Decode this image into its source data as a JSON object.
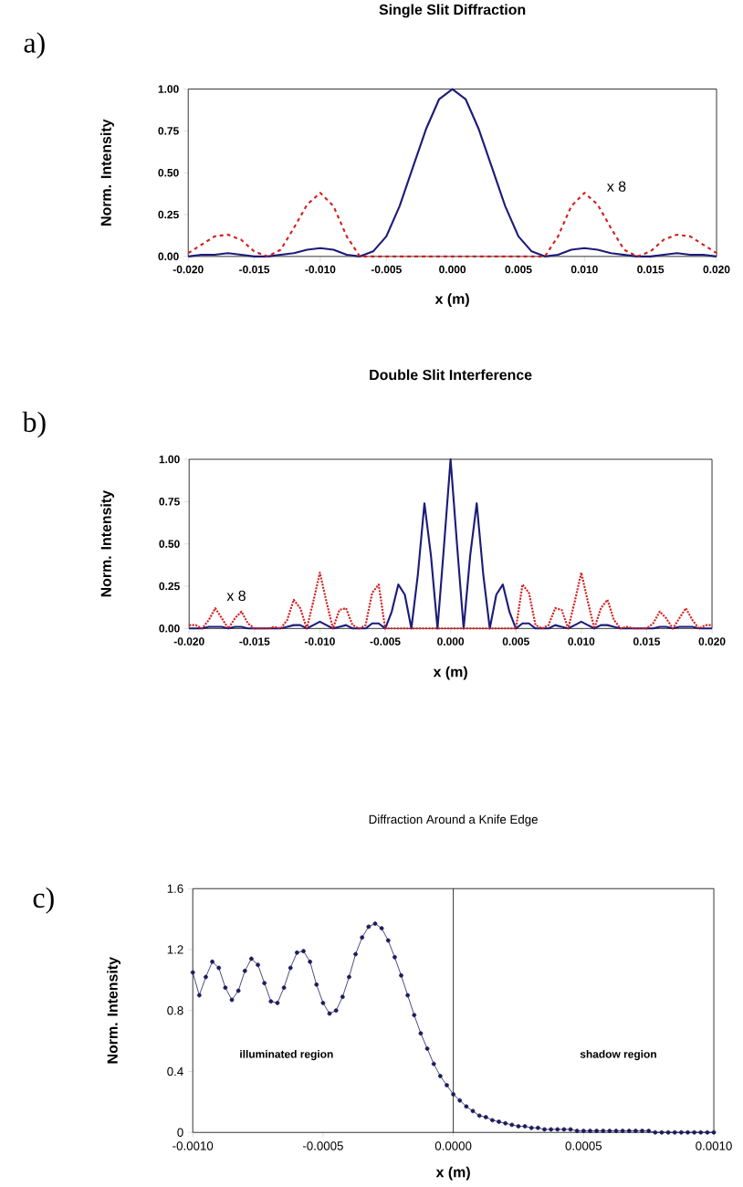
{
  "chart_data": [
    {
      "type": "line",
      "title": "Single Slit Diffraction",
      "xlabel": "x (m)",
      "ylabel": "Norm. Intensity",
      "annotations": [
        "a)",
        "x 8"
      ],
      "xlim": [
        -0.02,
        0.02
      ],
      "ylim": [
        0,
        1
      ],
      "xticks": [
        {
          "value": -0.02,
          "label": "-0.020"
        },
        {
          "value": -0.015,
          "label": "-0.015"
        },
        {
          "value": -0.01,
          "label": "-0.010"
        },
        {
          "value": -0.005,
          "label": "-0.005"
        },
        {
          "value": 0,
          "label": "0.000"
        },
        {
          "value": 0.005,
          "label": "0.005"
        },
        {
          "value": 0.01,
          "label": "0.010"
        },
        {
          "value": 0.015,
          "label": "0.015"
        },
        {
          "value": 0.02,
          "label": "0.020"
        }
      ],
      "yticks": [
        {
          "value": 0,
          "label": "0.00"
        },
        {
          "value": 0.25,
          "label": "0.25"
        },
        {
          "value": 0.5,
          "label": "0.50"
        },
        {
          "value": 0.75,
          "label": "0.75"
        },
        {
          "value": 1,
          "label": "1.00"
        }
      ],
      "x": [
        -0.02,
        -0.019,
        -0.018,
        -0.017,
        -0.016,
        -0.015,
        -0.014,
        -0.013,
        -0.012,
        -0.011,
        -0.01,
        -0.009,
        -0.008,
        -0.007,
        -0.006,
        -0.005,
        -0.004,
        -0.003,
        -0.002,
        -0.001,
        0,
        0.001,
        0.002,
        0.003,
        0.004,
        0.005,
        0.006,
        0.007,
        0.008,
        0.009,
        0.01,
        0.011,
        0.012,
        0.013,
        0.014,
        0.015,
        0.016,
        0.017,
        0.018,
        0.019,
        0.02
      ],
      "series": [
        {
          "color": "#1c1c78",
          "values": [
            0.0,
            0.01,
            0.01,
            0.02,
            0.01,
            0.0,
            0.0,
            0.01,
            0.02,
            0.04,
            0.05,
            0.04,
            0.01,
            0.0,
            0.03,
            0.12,
            0.3,
            0.53,
            0.76,
            0.94,
            1.0,
            0.94,
            0.76,
            0.53,
            0.3,
            0.12,
            0.03,
            0.0,
            0.01,
            0.04,
            0.05,
            0.04,
            0.02,
            0.01,
            0.0,
            0.0,
            0.01,
            0.02,
            0.01,
            0.01,
            0.0
          ]
        },
        {
          "color": "#d42020",
          "line_style": "dashed",
          "values": [
            0.02,
            0.07,
            0.12,
            0.13,
            0.1,
            0.03,
            0,
            0.04,
            0.17,
            0.31,
            0.38,
            0.3,
            0.12,
            0,
            0,
            0,
            0,
            0,
            0,
            0,
            0,
            0,
            0,
            0,
            0,
            0,
            0,
            0,
            0.12,
            0.3,
            0.38,
            0.31,
            0.17,
            0.04,
            0,
            0.03,
            0.1,
            0.13,
            0.12,
            0.07,
            0.02
          ]
        }
      ]
    },
    {
      "type": "line",
      "title": "Double Slit Interference",
      "xlabel": "x (m)",
      "ylabel": "Norm. Intensity",
      "annotations": [
        "b)",
        "x 8"
      ],
      "xlim": [
        -0.02,
        0.02
      ],
      "ylim": [
        0,
        1
      ],
      "xticks": [
        {
          "value": -0.02,
          "label": "-0.020"
        },
        {
          "value": -0.015,
          "label": "-0.015"
        },
        {
          "value": -0.01,
          "label": "-0.010"
        },
        {
          "value": -0.005,
          "label": "-0.005"
        },
        {
          "value": 0,
          "label": "0.000"
        },
        {
          "value": 0.005,
          "label": "0.005"
        },
        {
          "value": 0.01,
          "label": "0.010"
        },
        {
          "value": 0.015,
          "label": "0.015"
        },
        {
          "value": 0.02,
          "label": "0.020"
        }
      ],
      "yticks": [
        {
          "value": 0,
          "label": "0.00"
        },
        {
          "value": 0.25,
          "label": "0.25"
        },
        {
          "value": 0.5,
          "label": "0.50"
        },
        {
          "value": 0.75,
          "label": "0.75"
        },
        {
          "value": 1,
          "label": "1.00"
        }
      ],
      "x": [
        -0.02,
        -0.0195,
        -0.019,
        -0.0185,
        -0.018,
        -0.0175,
        -0.017,
        -0.0165,
        -0.016,
        -0.0155,
        -0.015,
        -0.0145,
        -0.014,
        -0.0135,
        -0.013,
        -0.0125,
        -0.012,
        -0.0115,
        -0.011,
        -0.0105,
        -0.01,
        -0.0095,
        -0.009,
        -0.0085,
        -0.008,
        -0.0075,
        -0.007,
        -0.0065,
        -0.006,
        -0.0055,
        -0.005,
        -0.0045,
        -0.004,
        -0.0035,
        -0.003,
        -0.0025,
        -0.002,
        -0.0015,
        -0.001,
        -0.0005,
        0,
        0.0005,
        0.001,
        0.0015,
        0.002,
        0.0025,
        0.003,
        0.0035,
        0.004,
        0.0045,
        0.005,
        0.0055,
        0.006,
        0.0065,
        0.007,
        0.0075,
        0.008,
        0.0085,
        0.009,
        0.0095,
        0.01,
        0.0105,
        0.011,
        0.0115,
        0.012,
        0.0125,
        0.013,
        0.0135,
        0.014,
        0.0145,
        0.015,
        0.0155,
        0.016,
        0.0165,
        0.017,
        0.0175,
        0.018,
        0.0185,
        0.019,
        0.0195,
        0.02
      ],
      "series": [
        {
          "color": "#1c1c78",
          "values": [
            0,
            0,
            0,
            0.01,
            0.01,
            0.01,
            0,
            0.01,
            0.01,
            0,
            0,
            0,
            0,
            0,
            0,
            0.01,
            0.02,
            0.02,
            0,
            0.02,
            0.04,
            0.02,
            0,
            0.01,
            0.02,
            0,
            0,
            0,
            0.03,
            0.03,
            0,
            0.1,
            0.26,
            0.2,
            0,
            0.32,
            0.74,
            0.43,
            0,
            0.49,
            1.0,
            0.49,
            0,
            0.43,
            0.74,
            0.32,
            0,
            0.2,
            0.26,
            0.1,
            0,
            0.03,
            0.03,
            0,
            0,
            0,
            0.02,
            0.01,
            0,
            0.02,
            0.04,
            0.02,
            0,
            0.02,
            0.02,
            0.01,
            0,
            0,
            0,
            0,
            0,
            0,
            0.01,
            0.01,
            0,
            0.01,
            0.01,
            0.01,
            0,
            0,
            0
          ]
        },
        {
          "color": "#d42020",
          "line_style": "dotted",
          "values": [
            0.02,
            0.02,
            0,
            0.05,
            0.12,
            0.06,
            0,
            0.06,
            0.1,
            0.03,
            0,
            0,
            0,
            0.01,
            0,
            0.05,
            0.17,
            0.12,
            0,
            0.16,
            0.33,
            0.16,
            0,
            0.11,
            0.12,
            0.02,
            0,
            0.02,
            0.21,
            0.26,
            0,
            0,
            0,
            0,
            0,
            0,
            0,
            0,
            0,
            0,
            0,
            0,
            0,
            0,
            0,
            0,
            0,
            0,
            0,
            0,
            0,
            0.26,
            0.21,
            0.02,
            0,
            0.02,
            0.12,
            0.11,
            0,
            0.16,
            0.33,
            0.16,
            0,
            0.12,
            0.17,
            0.05,
            0,
            0.01,
            0,
            0,
            0,
            0.03,
            0.1,
            0.06,
            0,
            0.06,
            0.12,
            0.05,
            0,
            0.02,
            0.02
          ]
        }
      ]
    },
    {
      "type": "line",
      "title": "Diffraction Around a Knife Edge",
      "xlabel": "x (m)",
      "ylabel": "Norm. Intensity",
      "marker": "circle",
      "annotations": [
        "c)",
        "illuminated region",
        "shadow region"
      ],
      "ref_lines": [
        {
          "axis": "x",
          "value": 0,
          "color": "#000000"
        }
      ],
      "xlim": [
        -0.001,
        0.001
      ],
      "ylim": [
        0,
        1.6
      ],
      "xticks": [
        {
          "value": -0.001,
          "label": "-0.0010"
        },
        {
          "value": -0.0005,
          "label": "-0.0005"
        },
        {
          "value": 0,
          "label": "0.0000"
        },
        {
          "value": 0.0005,
          "label": "0.0005"
        },
        {
          "value": 0.001,
          "label": "0.0010"
        }
      ],
      "yticks": [
        0,
        0.4,
        0.8,
        1.2,
        1.6
      ],
      "x": [
        -0.001,
        -0.000975,
        -0.00095,
        -0.000925,
        -0.0009,
        -0.000875,
        -0.00085,
        -0.000825,
        -0.0008,
        -0.000775,
        -0.00075,
        -0.000725,
        -0.0007,
        -0.000675,
        -0.00065,
        -0.000625,
        -0.0006,
        -0.000575,
        -0.00055,
        -0.000525,
        -0.0005,
        -0.000475,
        -0.00045,
        -0.000425,
        -0.0004,
        -0.000375,
        -0.00035,
        -0.000325,
        -0.0003,
        -0.000275,
        -0.00025,
        -0.000225,
        -0.0002,
        -0.000175,
        -0.00015,
        -0.000125,
        -0.0001,
        -7.5e-05,
        -5e-05,
        -2.5e-05,
        0,
        2.5e-05,
        5e-05,
        7.5e-05,
        0.0001,
        0.000125,
        0.00015,
        0.000175,
        0.0002,
        0.000225,
        0.00025,
        0.000275,
        0.0003,
        0.000325,
        0.00035,
        0.000375,
        0.0004,
        0.000425,
        0.00045,
        0.000475,
        0.0005,
        0.000525,
        0.00055,
        0.000575,
        0.0006,
        0.000625,
        0.00065,
        0.000675,
        0.0007,
        0.000725,
        0.00075,
        0.000775,
        0.0008,
        0.000825,
        0.00085,
        0.000875,
        0.0009,
        0.000925,
        0.00095,
        0.000975,
        0.001
      ],
      "series": [
        {
          "color": "#1c1c5c",
          "values": [
            1.05,
            0.9,
            1.02,
            1.12,
            1.08,
            0.95,
            0.87,
            0.93,
            1.06,
            1.14,
            1.1,
            0.98,
            0.86,
            0.85,
            0.95,
            1.08,
            1.18,
            1.19,
            1.12,
            0.97,
            0.85,
            0.78,
            0.8,
            0.89,
            1.02,
            1.17,
            1.28,
            1.35,
            1.37,
            1.34,
            1.26,
            1.15,
            1.03,
            0.9,
            0.77,
            0.65,
            0.55,
            0.45,
            0.37,
            0.31,
            0.25,
            0.21,
            0.17,
            0.14,
            0.11,
            0.1,
            0.08,
            0.07,
            0.06,
            0.05,
            0.04,
            0.04,
            0.03,
            0.03,
            0.02,
            0.02,
            0.02,
            0.02,
            0.02,
            0.01,
            0.01,
            0.01,
            0.01,
            0.01,
            0.01,
            0.01,
            0.01,
            0.01,
            0.01,
            0.01,
            0.01,
            0,
            0,
            0,
            0,
            0,
            0,
            0,
            0,
            0,
            0
          ]
        }
      ]
    }
  ]
}
